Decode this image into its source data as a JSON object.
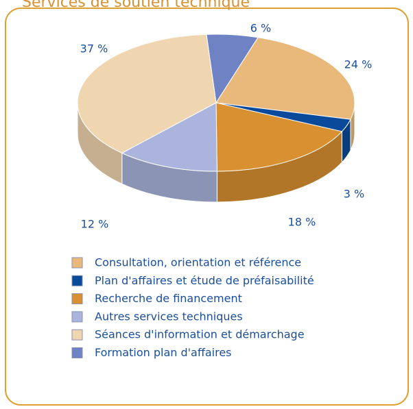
{
  "chart_data": {
    "type": "pie3d",
    "title": "Services de soutien technique",
    "categories": [
      "Consultation, orientation et référence",
      "Plan d'affaires et étude de préfaisabilité",
      "Recherche de financement",
      "Autres services techniques",
      "Séances d'information et démarchage",
      "Formation plan d'affaires"
    ],
    "values": [
      24,
      3,
      18,
      12,
      37,
      6
    ],
    "value_labels": [
      "24 %",
      "3 %",
      "18 %",
      "12 %",
      "37 %",
      "6 %"
    ],
    "colors": [
      "#e8b97a",
      "#0a4a9a",
      "#d89030",
      "#aab4dc",
      "#f0d6b0",
      "#6f82c4"
    ],
    "legend": "bottom"
  }
}
